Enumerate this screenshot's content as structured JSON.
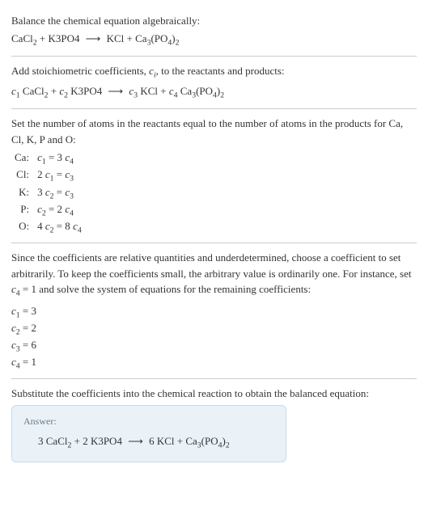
{
  "intro": {
    "line1": "Balance the chemical equation algebraically:",
    "reactant1": "CaCl",
    "reactant1_sub": "2",
    "plus": " + ",
    "reactant2": "K3PO4",
    "arrow": "⟶",
    "product1": "KCl + Ca",
    "product1_sub1": "3",
    "product1_mid": "(PO",
    "product1_sub2": "4",
    "product1_end": ")",
    "product1_sub3": "2"
  },
  "stoich": {
    "line1_a": "Add stoichiometric coefficients, ",
    "line1_ci": "c",
    "line1_i": "i",
    "line1_b": ", to the reactants and products:",
    "c1": "c",
    "c1n": "1",
    "r1a": " CaCl",
    "r1s": "2",
    "c2": "c",
    "c2n": "2",
    "r2": " K3PO4",
    "c3": "c",
    "c3n": "3",
    "p1": " KCl + ",
    "c4": "c",
    "c4n": "4",
    "p2a": " Ca",
    "p2s1": "3",
    "p2b": "(PO",
    "p2s2": "4",
    "p2c": ")",
    "p2s3": "2"
  },
  "atoms": {
    "intro": "Set the number of atoms in the reactants equal to the number of atoms in the products for Ca, Cl, K, P and O:",
    "rows": [
      {
        "el": "Ca:",
        "lhs_c": "c",
        "lhs_n": "1",
        "eq": " = 3 ",
        "rhs_c": "c",
        "rhs_n": "4",
        "pre": ""
      },
      {
        "el": "Cl:",
        "lhs_c": "c",
        "lhs_n": "1",
        "eq": " = ",
        "rhs_c": "c",
        "rhs_n": "3",
        "pre": "2 "
      },
      {
        "el": "K:",
        "lhs_c": "c",
        "lhs_n": "2",
        "eq": " = ",
        "rhs_c": "c",
        "rhs_n": "3",
        "pre": "3 "
      },
      {
        "el": "P:",
        "lhs_c": "c",
        "lhs_n": "2",
        "eq": " = 2 ",
        "rhs_c": "c",
        "rhs_n": "4",
        "pre": ""
      },
      {
        "el": "O:",
        "lhs_c": "c",
        "lhs_n": "2",
        "eq": " = 8 ",
        "rhs_c": "c",
        "rhs_n": "4",
        "pre": "4 "
      }
    ]
  },
  "choose": {
    "para_a": "Since the coefficients are relative quantities and underdetermined, choose a coefficient to set arbitrarily. To keep the coefficients small, the arbitrary value is ordinarily one. For instance, set ",
    "cv": "c",
    "cn": "4",
    "para_b": " = 1 and solve the system of equations for the remaining coefficients:",
    "coeffs": [
      {
        "c": "c",
        "n": "1",
        "v": " = 3"
      },
      {
        "c": "c",
        "n": "2",
        "v": " = 2"
      },
      {
        "c": "c",
        "n": "3",
        "v": " = 6"
      },
      {
        "c": "c",
        "n": "4",
        "v": " = 1"
      }
    ]
  },
  "substitute": {
    "text": "Substitute the coefficients into the chemical reaction to obtain the balanced equation:"
  },
  "answer": {
    "label": "Answer:",
    "a1": "3 CaCl",
    "a1s": "2",
    "a2": " + 2 K3PO4",
    "arrow": "⟶",
    "a3": "6 KCl + Ca",
    "a3s1": "3",
    "a3b": "(PO",
    "a3s2": "4",
    "a3c": ")",
    "a3s3": "2"
  }
}
